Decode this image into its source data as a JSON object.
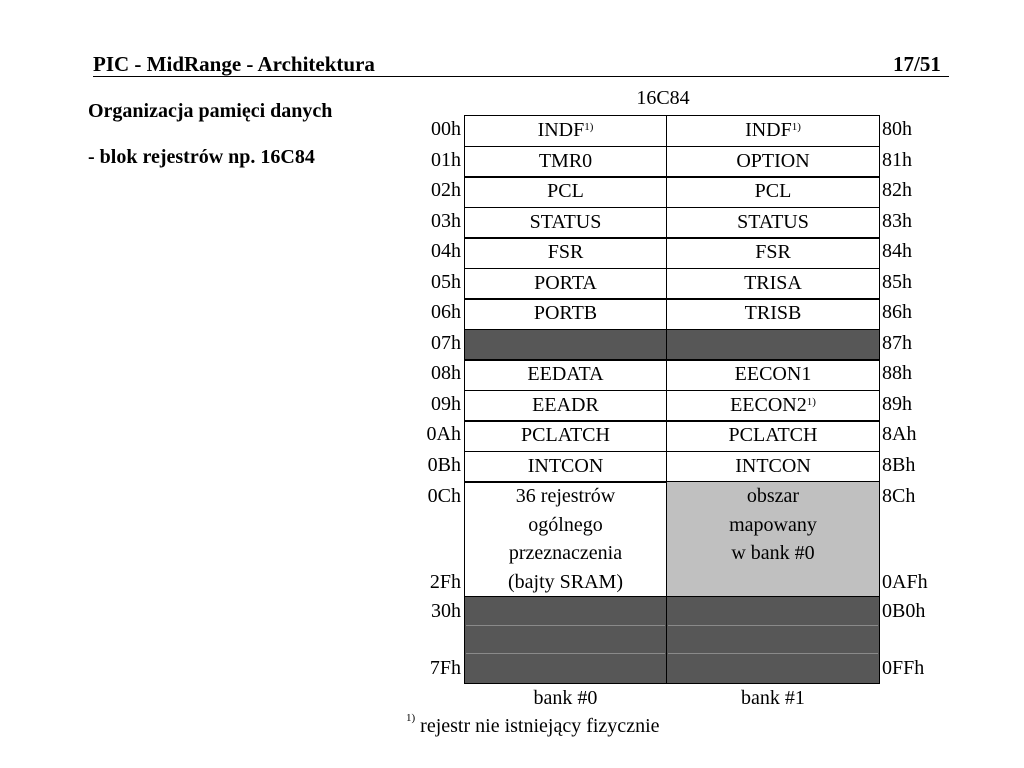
{
  "header": {
    "title": "PIC - MidRange - Architektura",
    "page": "17/51"
  },
  "subtitle": {
    "line1": "Organizacja pamięci danych",
    "line2": "- blok rejestrów np. 16C84"
  },
  "table": {
    "chip": "16C84",
    "rows": [
      {
        "addr_left": "00h",
        "bank0": "INDF",
        "bank0_note": "1)",
        "bank1": "INDF",
        "bank1_note": "1)",
        "addr_right": "80h"
      },
      {
        "addr_left": "01h",
        "bank0": "TMR0",
        "bank1": "OPTION",
        "addr_right": "81h"
      },
      {
        "addr_left": "02h",
        "bank0": "PCL",
        "bank1": "PCL",
        "addr_right": "82h"
      },
      {
        "addr_left": "03h",
        "bank0": "STATUS",
        "bank1": "STATUS",
        "addr_right": "83h"
      },
      {
        "addr_left": "04h",
        "bank0": "FSR",
        "bank1": "FSR",
        "addr_right": "84h"
      },
      {
        "addr_left": "05h",
        "bank0": "PORTA",
        "bank1": "TRISA",
        "addr_right": "85h"
      },
      {
        "addr_left": "06h",
        "bank0": "PORTB",
        "bank1": "TRISB",
        "addr_right": "86h"
      },
      {
        "addr_left": "07h",
        "bank0": "",
        "bank1": "",
        "addr_right": "87h",
        "unimplemented": true
      },
      {
        "addr_left": "08h",
        "bank0": "EEDATA",
        "bank1": "EECON1",
        "addr_right": "88h"
      },
      {
        "addr_left": "09h",
        "bank0": "EEADR",
        "bank1": "EECON2",
        "bank1_note": "1)",
        "addr_right": "89h"
      },
      {
        "addr_left": "0Ah",
        "bank0": "PCLATCH",
        "bank1": "PCLATCH",
        "addr_right": "8Ah"
      },
      {
        "addr_left": "0Bh",
        "bank0": "INTCON",
        "bank1": "INTCON",
        "addr_right": "8Bh"
      }
    ],
    "gpr": {
      "addr_left_start": "0Ch",
      "addr_left_end": "2Fh",
      "addr_right_start": "8Ch",
      "addr_right_end": "0AFh",
      "bank0_lines": [
        "36 rejestrów",
        "ogólnego",
        "przeznaczenia",
        "(bajty SRAM)"
      ],
      "bank1_lines": [
        "obszar",
        "mapowany",
        "w bank #0"
      ]
    },
    "unused": {
      "addr_left_start": "30h",
      "addr_left_end": "7Fh",
      "addr_right_start": "0B0h",
      "addr_right_end": "0FFh"
    },
    "bank_labels": [
      "bank #0",
      "bank #1"
    ],
    "colors": {
      "unimplemented": "#575757",
      "mapped": "#c0c0c0"
    }
  },
  "footnote": {
    "marker": "1)",
    "text": "rejestr nie istniejący fizycznie"
  }
}
